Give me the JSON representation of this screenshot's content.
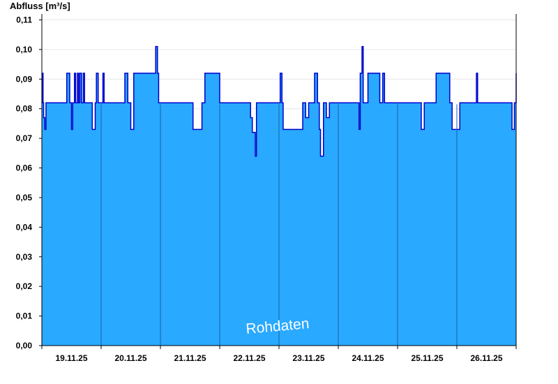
{
  "chart_data": {
    "type": "area",
    "title": "",
    "ylabel": "Abfluss [m³/s]",
    "xlabel": "",
    "ylim": [
      0,
      0.112
    ],
    "y_ticks": [
      0.0,
      0.01,
      0.02,
      0.03,
      0.04,
      0.05,
      0.06,
      0.07,
      0.08,
      0.09,
      0.1,
      0.11
    ],
    "y_tick_labels": [
      "0,00",
      "0,01",
      "0,02",
      "0,03",
      "0,04",
      "0,05",
      "0,06",
      "0,07",
      "0,08",
      "0,09",
      "0,10",
      "0,11"
    ],
    "x_range_days": [
      0,
      8
    ],
    "x_tick_labels": [
      "19.11.25",
      "20.11.25",
      "21.11.25",
      "22.11.25",
      "23.11.25",
      "24.11.25",
      "25.11.25",
      "26.11.25"
    ],
    "grid": true,
    "watermark": "Rohdaten",
    "colors": {
      "fill": "#29a9ff",
      "line": "#0000cc",
      "axis": "#000000",
      "grid": "#e6e6e6",
      "day_separator": "#1a5fa8"
    },
    "series": [
      {
        "x": [
          0,
          0.01,
          0.02,
          0.03,
          0.05,
          0.07,
          0.4,
          0.42,
          0.47,
          0.5,
          0.52,
          0.55,
          0.57,
          0.6,
          0.62,
          0.64,
          0.67,
          0.7,
          0.72,
          0.74,
          0.8,
          0.85,
          0.9,
          0.92,
          0.95,
          0.97,
          1.0,
          1.03,
          1.05,
          1.07,
          1.1,
          1.4,
          1.45,
          1.5,
          1.55,
          1.57,
          1.9,
          1.92,
          1.95,
          1.97,
          2.5,
          2.55,
          2.7,
          2.75,
          2.98,
          3.0,
          3.5,
          3.52,
          3.55,
          3.6,
          3.62,
          4.0,
          4.02,
          4.05,
          4.07,
          4.4,
          4.45,
          4.5,
          4.6,
          4.65,
          4.68,
          4.7,
          4.75,
          4.8,
          4.85,
          5.3,
          5.35,
          5.37,
          5.4,
          5.42,
          5.45,
          5.5,
          5.6,
          5.7,
          5.75,
          5.78,
          5.82,
          6.35,
          6.4,
          6.45,
          6.5,
          6.65,
          6.85,
          6.88,
          6.92,
          7.05,
          7.3,
          7.33,
          7.35,
          7.9,
          7.93,
          7.97,
          8.0
        ],
        "values": [
          0.082,
          0.092,
          0.082,
          0.077,
          0.073,
          0.082,
          0.082,
          0.092,
          0.082,
          0.073,
          0.082,
          0.092,
          0.082,
          0.092,
          0.082,
          0.092,
          0.082,
          0.092,
          0.082,
          0.082,
          0.082,
          0.073,
          0.082,
          0.092,
          0.082,
          0.082,
          0.082,
          0.092,
          0.082,
          0.082,
          0.082,
          0.092,
          0.082,
          0.073,
          0.092,
          0.092,
          0.092,
          0.101,
          0.092,
          0.082,
          0.082,
          0.073,
          0.082,
          0.092,
          0.092,
          0.082,
          0.082,
          0.077,
          0.072,
          0.064,
          0.082,
          0.082,
          0.092,
          0.082,
          0.073,
          0.082,
          0.077,
          0.082,
          0.092,
          0.082,
          0.073,
          0.064,
          0.082,
          0.077,
          0.082,
          0.082,
          0.073,
          0.092,
          0.101,
          0.082,
          0.082,
          0.092,
          0.092,
          0.082,
          0.092,
          0.082,
          0.082,
          0.082,
          0.073,
          0.082,
          0.082,
          0.092,
          0.092,
          0.082,
          0.073,
          0.082,
          0.082,
          0.092,
          0.082,
          0.082,
          0.073,
          0.082,
          0.092
        ]
      }
    ]
  }
}
